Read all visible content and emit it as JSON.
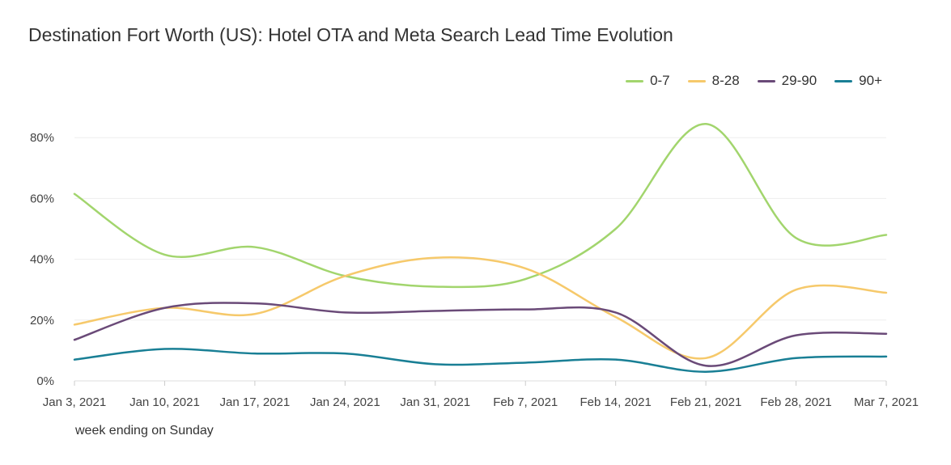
{
  "chart_data": {
    "type": "line",
    "title": "Destination Fort Worth (US): Hotel OTA and Meta Search Lead Time Evolution",
    "xlabel": "week ending on Sunday",
    "ylabel": "",
    "categories": [
      "Jan 3, 2021",
      "Jan 10, 2021",
      "Jan 17, 2021",
      "Jan 24, 2021",
      "Jan 31, 2021",
      "Feb 7, 2021",
      "Feb 14, 2021",
      "Feb 21, 2021",
      "Feb 28, 2021",
      "Mar 7, 2021"
    ],
    "y_ticks": [
      "0%",
      "20%",
      "40%",
      "60%",
      "80%"
    ],
    "ylim": [
      0,
      85
    ],
    "grid": true,
    "legend_position": "top-right",
    "series": [
      {
        "name": "0-7",
        "color": "#a2d56d",
        "values": [
          61.5,
          41.5,
          44,
          34.5,
          31,
          33.5,
          50,
          84.5,
          47,
          48
        ]
      },
      {
        "name": "8-28",
        "color": "#f6c96b",
        "values": [
          18.5,
          24,
          22,
          34.5,
          40.5,
          37,
          21,
          7.5,
          30,
          29
        ]
      },
      {
        "name": "29-90",
        "color": "#6a4a78",
        "values": [
          13.5,
          24,
          25.5,
          22.5,
          23,
          23.5,
          22.5,
          5,
          15,
          15.5
        ]
      },
      {
        "name": "90+",
        "color": "#197f95",
        "values": [
          7,
          10.5,
          9,
          9,
          5.5,
          6,
          7,
          3,
          7.5,
          8
        ]
      }
    ]
  }
}
